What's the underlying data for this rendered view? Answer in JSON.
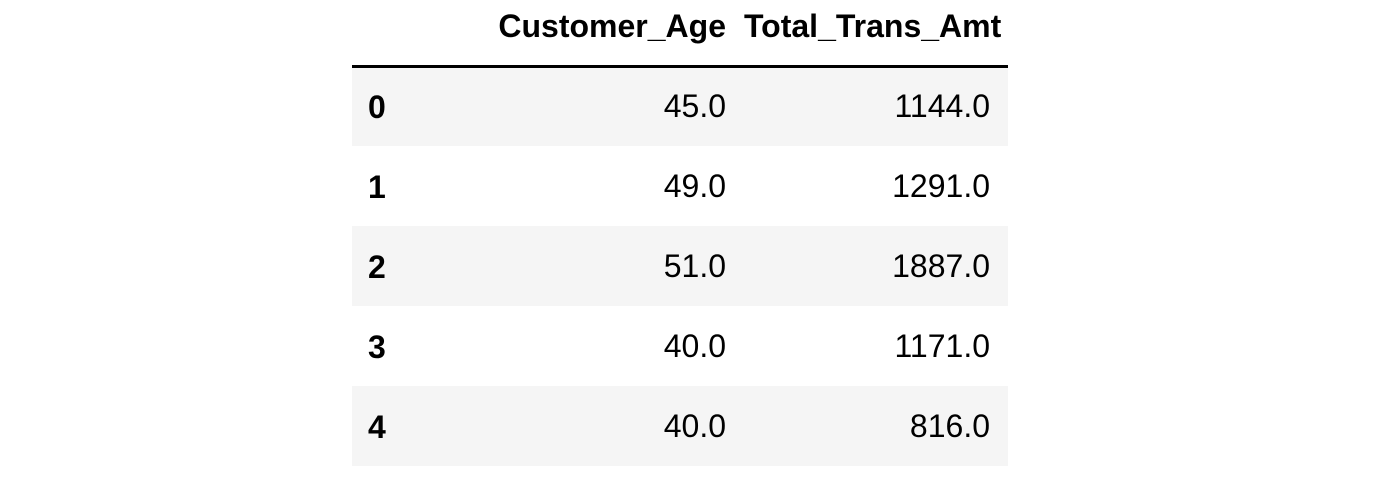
{
  "table": {
    "index_header": "",
    "columns": [
      "Customer_Age",
      "Total_Trans_Amt"
    ],
    "rows": [
      {
        "index": "0",
        "values": [
          "45.0",
          "1144.0"
        ]
      },
      {
        "index": "1",
        "values": [
          "49.0",
          "1291.0"
        ]
      },
      {
        "index": "2",
        "values": [
          "51.0",
          "1887.0"
        ]
      },
      {
        "index": "3",
        "values": [
          "40.0",
          "1171.0"
        ]
      },
      {
        "index": "4",
        "values": [
          "40.0",
          "816.0"
        ]
      }
    ]
  },
  "colors": {
    "striped_row": "#f5f5f5",
    "background": "#ffffff",
    "text": "#000000",
    "header_rule": "#000000"
  }
}
